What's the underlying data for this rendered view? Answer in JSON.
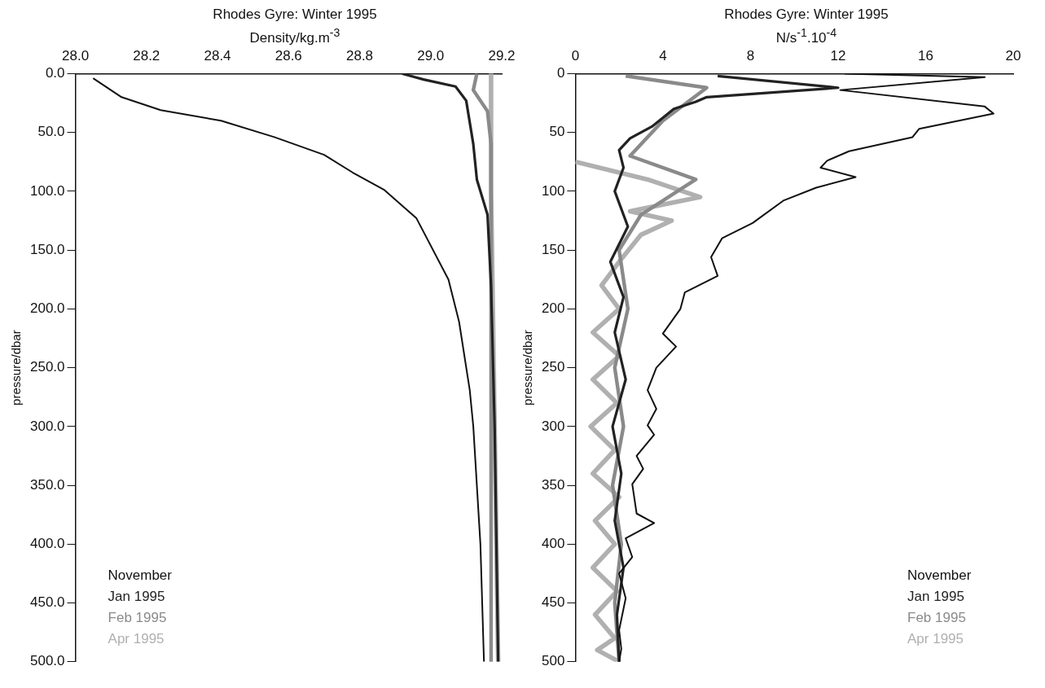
{
  "chart_data": [
    {
      "type": "line",
      "title": "Rhodes Gyre: Winter 1995",
      "xlabel": "Density/kg.m$^{-3}$",
      "ylabel": "pressure/dbar",
      "legend": "bottom left",
      "grid": false,
      "xlim": [
        28.0,
        29.2
      ],
      "xticks": [
        {
          "value": 28.0,
          "label": "28.0"
        },
        {
          "value": 28.2,
          "label": "28.2"
        },
        {
          "value": 28.4,
          "label": "28.4"
        },
        {
          "value": 28.6,
          "label": "28.6"
        },
        {
          "value": 28.8,
          "label": "28.8"
        },
        {
          "value": 29.0,
          "label": "29.0"
        },
        {
          "value": 29.2,
          "label": "29.2"
        }
      ],
      "ylim": [
        500,
        0
      ],
      "yticks": [
        {
          "value": 0,
          "label": "0.0"
        },
        {
          "value": 50,
          "label": "50.0"
        },
        {
          "value": 100,
          "label": "100.0"
        },
        {
          "value": 150,
          "label": "150.0"
        },
        {
          "value": 200,
          "label": "200.0"
        },
        {
          "value": 250,
          "label": "250.0"
        },
        {
          "value": 300,
          "label": "300.0"
        },
        {
          "value": 350,
          "label": "350.0"
        },
        {
          "value": 400,
          "label": "400.0"
        },
        {
          "value": 450,
          "label": "450.0"
        },
        {
          "value": 500,
          "label": "500.0"
        }
      ],
      "series": [
        {
          "name": "November",
          "color": "#111111",
          "x": [
            28.05,
            28.13,
            28.24,
            28.41,
            28.56,
            28.7,
            28.78,
            28.87,
            28.96,
            29.05,
            29.08,
            29.11,
            29.12,
            29.14,
            29.15
          ],
          "values": [
            4,
            20,
            31,
            40,
            54,
            69,
            84,
            99,
            123,
            175,
            211,
            269,
            300,
            400,
            500
          ]
        },
        {
          "name": "Jan 1995",
          "color": "#222222",
          "x": [
            28.92,
            28.98,
            29.07,
            29.1,
            29.12,
            29.13,
            29.16,
            29.17,
            29.18,
            29.19
          ],
          "values": [
            0,
            5,
            11,
            23,
            60,
            90,
            120,
            181,
            300,
            500
          ]
        },
        {
          "name": "Feb 1995",
          "color": "#8a8a8a",
          "x": [
            29.13,
            29.12,
            29.16,
            29.17,
            29.17
          ],
          "values": [
            0,
            14,
            32,
            60,
            500
          ]
        },
        {
          "name": "Apr 1995",
          "color": "#b0b0b0",
          "x": [
            29.17,
            29.17,
            29.18,
            29.19
          ],
          "values": [
            0,
            100,
            300,
            500
          ]
        }
      ]
    },
    {
      "type": "line",
      "title": "Rhodes Gyre: Winter 1995",
      "xlabel": "N/s$^{-1}$.10$^{-4}$",
      "ylabel": "pressure/dbar",
      "legend": "bottom right",
      "grid": false,
      "xlim": [
        0,
        20
      ],
      "xticks": [
        0,
        4,
        8,
        12,
        16,
        20
      ],
      "ylim": [
        500,
        0
      ],
      "yticks": [
        0,
        50,
        100,
        150,
        200,
        250,
        300,
        350,
        400,
        450,
        500
      ],
      "series": [
        {
          "name": "November",
          "color": "#111111",
          "x": [
            12.3,
            18.7,
            12.1,
            18.7,
            19.1,
            15.7,
            15.4,
            12.5,
            11.5,
            11.2,
            12.8,
            11.0,
            9.5,
            8.1,
            6.7,
            6.2,
            6.5,
            5.0,
            4.8,
            4.0,
            4.6,
            3.7,
            3.3,
            3.7,
            3.3,
            3.6,
            2.8,
            3.1,
            2.6,
            2.8,
            3.6,
            2.3,
            2.6,
            2.0,
            2.3,
            2.0,
            2.1,
            2.0
          ],
          "values": [
            0,
            3,
            14,
            28,
            34,
            47,
            54,
            66,
            74,
            80,
            88,
            97,
            108,
            127,
            140,
            156,
            172,
            186,
            200,
            221,
            232,
            250,
            269,
            285,
            299,
            307,
            325,
            336,
            349,
            374,
            382,
            395,
            411,
            425,
            446,
            473,
            489,
            500
          ]
        },
        {
          "name": "Jan 1995",
          "color": "#222222",
          "x": [
            6.5,
            12.0,
            6.0,
            5.5,
            4.5,
            3.5,
            2.5,
            2.0,
            2.2,
            1.8,
            2.4,
            1.6,
            2.2,
            1.8,
            2.3,
            1.7,
            2.1,
            1.8,
            2.2,
            1.9,
            2.0
          ],
          "values": [
            2,
            12,
            20,
            24,
            30,
            45,
            55,
            65,
            80,
            100,
            130,
            160,
            190,
            220,
            260,
            300,
            340,
            380,
            420,
            460,
            500
          ]
        },
        {
          "name": "Feb 1995",
          "color": "#8a8a8a",
          "x": [
            2.3,
            6.0,
            4.0,
            2.5,
            5.5,
            3.0,
            2.0,
            2.4,
            1.8,
            2.2,
            1.7,
            2.1,
            1.8,
            2.0
          ],
          "values": [
            2,
            12,
            40,
            70,
            90,
            120,
            150,
            200,
            250,
            300,
            350,
            400,
            450,
            500
          ]
        },
        {
          "name": "Apr 1995",
          "color": "#b0b0b0",
          "x": [
            0.0,
            3.3,
            5.7,
            2.5,
            4.4,
            3.0,
            2.0,
            1.2,
            2.0,
            0.8,
            2.0,
            0.8,
            1.9,
            0.7,
            1.8,
            0.8,
            2.0,
            0.9,
            1.8,
            0.8,
            1.9,
            0.9,
            1.8,
            1.0,
            2.0
          ],
          "values": [
            75,
            90,
            105,
            117,
            125,
            137,
            160,
            180,
            200,
            220,
            240,
            260,
            280,
            300,
            320,
            340,
            360,
            380,
            400,
            420,
            440,
            460,
            480,
            490,
            500
          ]
        }
      ]
    }
  ]
}
